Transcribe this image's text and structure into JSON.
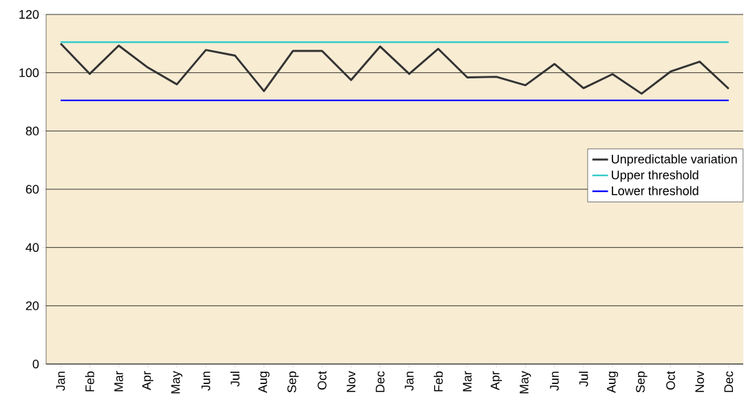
{
  "chart_data": {
    "type": "line",
    "categories": [
      "Jan",
      "Feb",
      "Mar",
      "Apr",
      "May",
      "Jun",
      "Jul",
      "Aug",
      "Sep",
      "Oct",
      "Nov",
      "Dec",
      "Jan",
      "Feb",
      "Mar",
      "Apr",
      "May",
      "Jun",
      "Jul",
      "Aug",
      "Sep",
      "Oct",
      "Nov",
      "Dec"
    ],
    "series": [
      {
        "name": "Unpredictable variation",
        "color": "#333333",
        "values": [
          110,
          99.6,
          109.3,
          101.8,
          96,
          107.8,
          105.9,
          93.7,
          107.5,
          107.5,
          97.5,
          109,
          99.6,
          108.2,
          98.4,
          98.6,
          95.7,
          103,
          94.7,
          99.5,
          92.8,
          100.4,
          103.8,
          94.5
        ]
      },
      {
        "name": "Upper threshold",
        "color": "#33cccc",
        "values": [
          110.5,
          110.5,
          110.5,
          110.5,
          110.5,
          110.5,
          110.5,
          110.5,
          110.5,
          110.5,
          110.5,
          110.5,
          110.5,
          110.5,
          110.5,
          110.5,
          110.5,
          110.5,
          110.5,
          110.5,
          110.5,
          110.5,
          110.5,
          110.5
        ]
      },
      {
        "name": "Lower threshold",
        "color": "#0000ff",
        "values": [
          90.5,
          90.5,
          90.5,
          90.5,
          90.5,
          90.5,
          90.5,
          90.5,
          90.5,
          90.5,
          90.5,
          90.5,
          90.5,
          90.5,
          90.5,
          90.5,
          90.5,
          90.5,
          90.5,
          90.5,
          90.5,
          90.5,
          90.5,
          90.5
        ]
      }
    ],
    "ylim": [
      0,
      120
    ],
    "yticks": [
      0,
      20,
      40,
      60,
      80,
      100,
      120
    ],
    "grid": "y",
    "legend": "right",
    "marker": "none",
    "line_style": "solid"
  }
}
